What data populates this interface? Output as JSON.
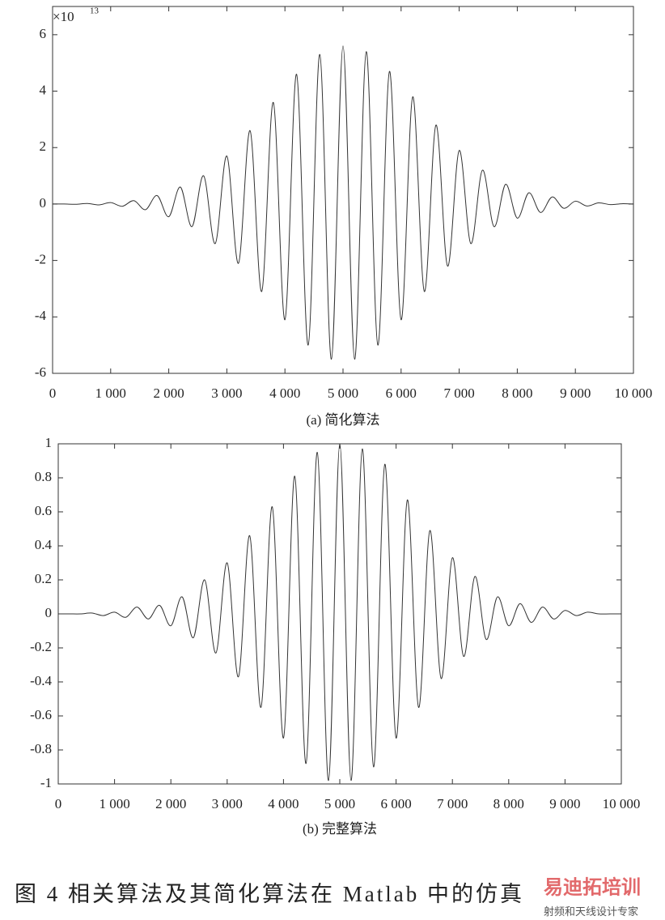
{
  "chart_data": [
    {
      "type": "line",
      "y_multiplier": "×10",
      "y_exponent": "13",
      "caption": "(a) 简化算法",
      "x": [
        0,
        200,
        400,
        600,
        800,
        1000,
        1200,
        1400,
        1600,
        1800,
        2000,
        2200,
        2400,
        2600,
        2800,
        3000,
        3200,
        3400,
        3600,
        3800,
        4000,
        4200,
        4400,
        4600,
        4800,
        5000,
        5200,
        5400,
        5600,
        5800,
        6000,
        6200,
        6400,
        6600,
        6800,
        7000,
        7200,
        7400,
        7600,
        7800,
        8000,
        8200,
        8400,
        8600,
        8800,
        9000,
        9200,
        9400,
        9600,
        9800,
        10000
      ],
      "series": [
        {
          "color": "#333333",
          "values": [
            0,
            0,
            -0.01,
            0.02,
            -0.03,
            0.05,
            -0.08,
            0.12,
            -0.2,
            0.3,
            -0.45,
            0.6,
            -0.8,
            1.0,
            -1.4,
            1.7,
            -2.1,
            2.6,
            -3.1,
            3.6,
            -4.1,
            4.6,
            -5.0,
            5.3,
            -5.5,
            5.6,
            -5.5,
            5.4,
            -5.0,
            4.7,
            -4.1,
            3.8,
            -3.1,
            2.8,
            -2.2,
            1.9,
            -1.4,
            1.2,
            -0.8,
            0.7,
            -0.5,
            0.4,
            -0.3,
            0.25,
            -0.15,
            0.1,
            -0.07,
            0.04,
            -0.02,
            0.01,
            0
          ]
        }
      ],
      "xlim": [
        0,
        10000
      ],
      "xticks": [
        0,
        {
          "value": 1000,
          "label": "1 000"
        },
        {
          "value": 2000,
          "label": "2 000"
        },
        {
          "value": 3000,
          "label": "3 000"
        },
        {
          "value": 4000,
          "label": "4 000"
        },
        {
          "value": 5000,
          "label": "5 000"
        },
        {
          "value": 6000,
          "label": "6 000"
        },
        {
          "value": 7000,
          "label": "7 000"
        },
        {
          "value": 8000,
          "label": "8 000"
        },
        {
          "value": 9000,
          "label": "9 000"
        },
        {
          "value": 10000,
          "label": "10 000"
        }
      ],
      "ylim": [
        -6,
        7
      ],
      "yticks": [
        -6,
        -4,
        -2,
        0,
        2,
        4,
        6
      ],
      "grid": false
    },
    {
      "type": "line",
      "caption": "(b) 完整算法",
      "x": [
        0,
        200,
        400,
        600,
        800,
        1000,
        1200,
        1400,
        1600,
        1800,
        2000,
        2200,
        2400,
        2600,
        2800,
        3000,
        3200,
        3400,
        3600,
        3800,
        4000,
        4200,
        4400,
        4600,
        4800,
        5000,
        5200,
        5400,
        5600,
        5800,
        6000,
        6200,
        6400,
        6600,
        6800,
        7000,
        7200,
        7400,
        7600,
        7800,
        8000,
        8200,
        8400,
        8600,
        8800,
        9000,
        9200,
        9400,
        9600,
        9800,
        10000
      ],
      "series": [
        {
          "color": "#333333",
          "values": [
            0,
            0,
            0,
            0.005,
            -0.01,
            0.01,
            -0.02,
            0.04,
            -0.03,
            0.05,
            -0.07,
            0.1,
            -0.14,
            0.2,
            -0.23,
            0.3,
            -0.37,
            0.46,
            -0.55,
            0.63,
            -0.73,
            0.81,
            -0.88,
            0.95,
            -0.98,
            1.0,
            -0.98,
            0.97,
            -0.9,
            0.88,
            -0.73,
            0.67,
            -0.55,
            0.49,
            -0.38,
            0.33,
            -0.25,
            0.22,
            -0.15,
            0.1,
            -0.07,
            0.06,
            -0.05,
            0.04,
            -0.03,
            0.02,
            -0.01,
            0.01,
            0,
            0,
            0
          ]
        }
      ],
      "xlim": [
        0,
        10000
      ],
      "xticks": [
        0,
        {
          "value": 1000,
          "label": "1 000"
        },
        {
          "value": 2000,
          "label": "2 000"
        },
        {
          "value": 3000,
          "label": "3 000"
        },
        {
          "value": 4000,
          "label": "4 000"
        },
        {
          "value": 5000,
          "label": "5 000"
        },
        {
          "value": 6000,
          "label": "6 000"
        },
        {
          "value": 7000,
          "label": "7 000"
        },
        {
          "value": 8000,
          "label": "8 000"
        },
        {
          "value": 9000,
          "label": "9 000"
        },
        {
          "value": 10000,
          "label": "10 000"
        }
      ],
      "ylim": [
        -1,
        1
      ],
      "yticks": [
        -1,
        -0.8,
        -0.6,
        -0.4,
        -0.2,
        0,
        0.2,
        0.4,
        0.6,
        0.8,
        1
      ],
      "grid": false
    }
  ],
  "figure_caption": "图 4   相关算法及其简化算法在 Matlab 中的仿真",
  "watermark": {
    "logo": "易迪拓培训",
    "tagline": "射频和天线设计专家"
  }
}
